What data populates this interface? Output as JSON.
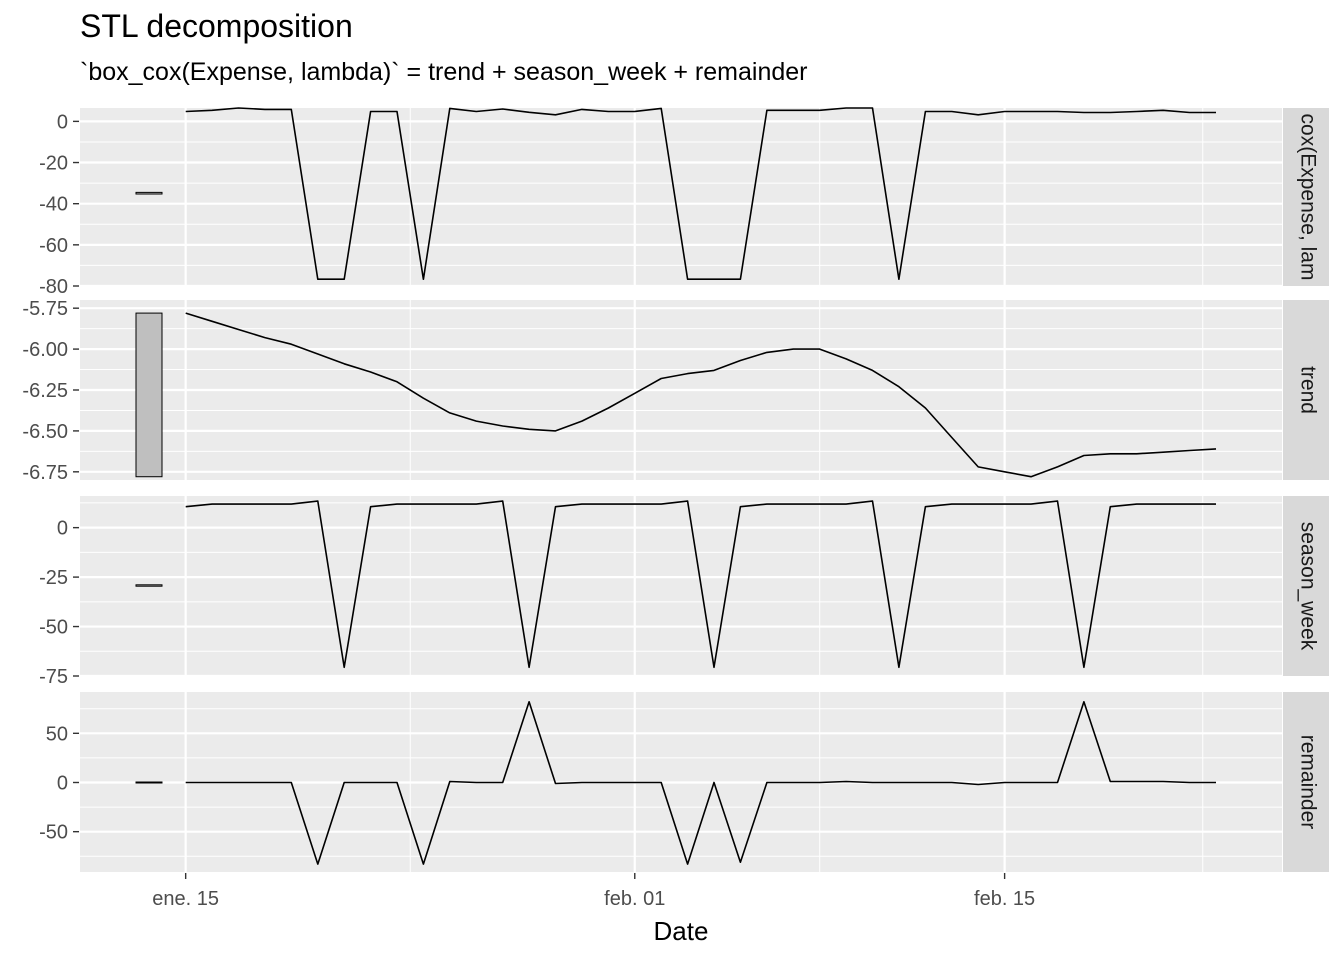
{
  "chart_data": {
    "type": "line",
    "title": "STL decomposition",
    "subtitle": "`box_cox(Expense, lambda)` = trend + season_week + remainder",
    "xlabel": "Date",
    "x_ticks": [
      {
        "label": "ene. 15",
        "day": 15
      },
      {
        "label": "feb. 01",
        "day": 32
      },
      {
        "label": "feb. 15",
        "day": 46
      }
    ],
    "x_range_days": [
      11,
      56.5
    ],
    "panels": [
      {
        "name": "box_cox(Expense, lambda)",
        "strip_label": "cox(Expense, lam",
        "ylim": [
          -80,
          6.5
        ],
        "y_ticks": [
          0,
          -20,
          -40,
          -60,
          -80
        ],
        "y_tick_labels": [
          "0",
          "-20",
          "-40",
          "-60",
          "-80"
        ],
        "scale_bar": [
          -35.3,
          -34.5
        ],
        "values": [
          4.8,
          5.4,
          6.5,
          5.8,
          5.8,
          -76.7,
          -76.7,
          4.8,
          4.8,
          -76.7,
          6.3,
          4.8,
          6.0,
          4.4,
          3.2,
          5.8,
          4.8,
          4.8,
          6.3,
          -76.7,
          -76.7,
          -76.7,
          5.4,
          5.4,
          5.4,
          6.5,
          6.5,
          -76.7,
          4.8,
          4.8,
          3.2,
          4.8,
          4.8,
          4.8,
          4.3,
          4.3,
          4.8,
          5.4,
          4.3,
          4.3
        ]
      },
      {
        "name": "trend",
        "strip_label": "trend",
        "ylim": [
          -6.8,
          -5.7
        ],
        "y_ticks": [
          -5.75,
          -6.0,
          -6.25,
          -6.5,
          -6.75
        ],
        "y_tick_labels": [
          "-5.75",
          "-6.00",
          "-6.25",
          "-6.50",
          "-6.75"
        ],
        "scale_bar": [
          -6.78,
          -5.78
        ],
        "values": [
          -5.78,
          -5.83,
          -5.88,
          -5.93,
          -5.97,
          -6.03,
          -6.09,
          -6.14,
          -6.2,
          -6.3,
          -6.39,
          -6.44,
          -6.47,
          -6.49,
          -6.5,
          -6.44,
          -6.36,
          -6.27,
          -6.18,
          -6.15,
          -6.13,
          -6.07,
          -6.02,
          -6.0,
          -6.0,
          -6.06,
          -6.13,
          -6.23,
          -6.36,
          -6.54,
          -6.72,
          -6.75,
          -6.78,
          -6.72,
          -6.65,
          -6.64,
          -6.64,
          -6.63,
          -6.62,
          -6.61
        ]
      },
      {
        "name": "season_week",
        "strip_label": "season_week",
        "ylim": [
          -75,
          16
        ],
        "y_ticks": [
          0,
          -25,
          -50,
          -75
        ],
        "y_tick_labels": [
          "0",
          "-25",
          "-50",
          "-75"
        ],
        "scale_bar": [
          -29.6,
          -28.9
        ],
        "values": [
          10.6,
          11.9,
          11.9,
          11.9,
          11.9,
          13.4,
          -70.6,
          10.6,
          11.9,
          11.9,
          11.9,
          11.9,
          13.4,
          -70.6,
          10.6,
          11.9,
          11.9,
          11.9,
          11.9,
          13.4,
          -70.6,
          10.6,
          11.9,
          11.9,
          11.9,
          11.9,
          13.4,
          -70.6,
          10.6,
          11.9,
          11.9,
          11.9,
          11.9,
          13.4,
          -70.6,
          10.6,
          11.9,
          11.9,
          11.9,
          11.9
        ]
      },
      {
        "name": "remainder",
        "strip_label": "remainder",
        "ylim": [
          -91,
          92
        ],
        "y_ticks": [
          50,
          0,
          -50
        ],
        "y_tick_labels": [
          "50",
          "0",
          "-50"
        ],
        "scale_bar": [
          -0.5,
          0.5
        ],
        "values": [
          0.0,
          0.0,
          0.0,
          0.0,
          0.0,
          -83.0,
          0.0,
          0.0,
          0.0,
          -83.0,
          1.0,
          0.0,
          0.0,
          82.0,
          -1.0,
          0.0,
          0.0,
          0.0,
          0.0,
          -83.0,
          0.0,
          -81.0,
          0.0,
          0.0,
          0.0,
          1.0,
          0.0,
          0.0,
          0.0,
          0.0,
          -2.0,
          0.0,
          0.0,
          0.0,
          82.0,
          1.0,
          1.0,
          1.0,
          0.0,
          0.0
        ]
      }
    ],
    "grid": true,
    "colors": {
      "panel_bg": "#ebebeb",
      "grid": "#ffffff",
      "strip_bg": "#d9d9d9",
      "line": "#000000",
      "scale_bar_fill": "#bfbfbf"
    }
  }
}
